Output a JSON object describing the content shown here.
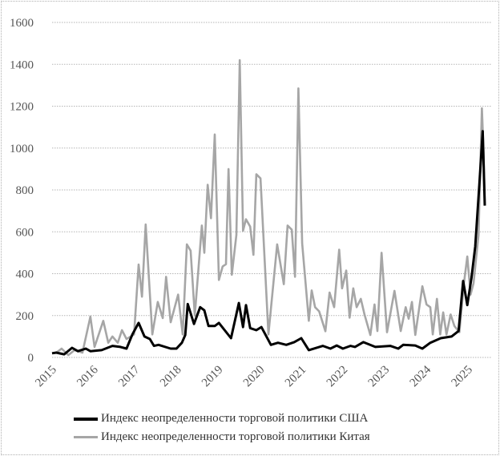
{
  "chart_data": {
    "type": "line",
    "title": "",
    "xlabel": "",
    "ylabel": "",
    "xlim": [
      2015,
      2025.4
    ],
    "ylim": [
      0,
      1600
    ],
    "yticks": [
      0,
      200,
      400,
      600,
      800,
      1000,
      1200,
      1400,
      1600
    ],
    "xtick_labels": [
      "2015",
      "2016",
      "2017",
      "2018",
      "2019",
      "2020",
      "2021",
      "2022",
      "2023",
      "2024",
      "2025"
    ],
    "grid": true,
    "legend_position": "bottom",
    "series": [
      {
        "name": "Индекс неопределенности торговой политики США",
        "color": "#000000",
        "points": [
          [
            2015.0,
            20
          ],
          [
            2015.1,
            23
          ],
          [
            2015.29,
            15
          ],
          [
            2015.48,
            46
          ],
          [
            2015.62,
            30
          ],
          [
            2015.81,
            42
          ],
          [
            2015.92,
            30
          ],
          [
            2016.19,
            35
          ],
          [
            2016.45,
            55
          ],
          [
            2016.64,
            50
          ],
          [
            2016.79,
            42
          ],
          [
            2016.93,
            110
          ],
          [
            2017.08,
            165
          ],
          [
            2017.22,
            100
          ],
          [
            2017.35,
            88
          ],
          [
            2017.45,
            55
          ],
          [
            2017.56,
            60
          ],
          [
            2017.85,
            42
          ],
          [
            2017.99,
            42
          ],
          [
            2018.12,
            70
          ],
          [
            2018.2,
            107
          ],
          [
            2018.26,
            255
          ],
          [
            2018.41,
            160
          ],
          [
            2018.56,
            240
          ],
          [
            2018.66,
            225
          ],
          [
            2018.76,
            150
          ],
          [
            2018.91,
            150
          ],
          [
            2019.01,
            165
          ],
          [
            2019.3,
            92
          ],
          [
            2019.49,
            260
          ],
          [
            2019.59,
            145
          ],
          [
            2019.66,
            250
          ],
          [
            2019.76,
            140
          ],
          [
            2019.91,
            130
          ],
          [
            2020.03,
            145
          ],
          [
            2020.26,
            60
          ],
          [
            2020.43,
            70
          ],
          [
            2020.63,
            60
          ],
          [
            2020.82,
            73
          ],
          [
            2020.99,
            92
          ],
          [
            2021.17,
            35
          ],
          [
            2021.51,
            55
          ],
          [
            2021.69,
            42
          ],
          [
            2021.84,
            57
          ],
          [
            2021.99,
            42
          ],
          [
            2022.17,
            55
          ],
          [
            2022.28,
            50
          ],
          [
            2022.48,
            73
          ],
          [
            2022.77,
            50
          ],
          [
            2023.13,
            55
          ],
          [
            2023.32,
            42
          ],
          [
            2023.44,
            60
          ],
          [
            2023.73,
            57
          ],
          [
            2023.9,
            42
          ],
          [
            2024.09,
            70
          ],
          [
            2024.34,
            92
          ],
          [
            2024.6,
            100
          ],
          [
            2024.77,
            126
          ],
          [
            2024.88,
            365
          ],
          [
            2024.98,
            250
          ],
          [
            2025.08,
            380
          ],
          [
            2025.17,
            530
          ],
          [
            2025.27,
            825
          ],
          [
            2025.35,
            1080
          ],
          [
            2025.4,
            725
          ]
        ]
      },
      {
        "name": "Индекс неопределенности торговой политики Китая",
        "color": "#a6a6a6",
        "points": [
          [
            2015.0,
            20
          ],
          [
            2015.1,
            23
          ],
          [
            2015.23,
            42
          ],
          [
            2015.39,
            11
          ],
          [
            2015.54,
            35
          ],
          [
            2015.73,
            23
          ],
          [
            2015.92,
            195
          ],
          [
            2016.02,
            50
          ],
          [
            2016.23,
            175
          ],
          [
            2016.35,
            70
          ],
          [
            2016.45,
            100
          ],
          [
            2016.58,
            70
          ],
          [
            2016.68,
            130
          ],
          [
            2016.79,
            88
          ],
          [
            2016.97,
            110
          ],
          [
            2017.08,
            444
          ],
          [
            2017.16,
            290
          ],
          [
            2017.25,
            635
          ],
          [
            2017.41,
            110
          ],
          [
            2017.54,
            265
          ],
          [
            2017.66,
            188
          ],
          [
            2017.74,
            385
          ],
          [
            2017.85,
            168
          ],
          [
            2018.03,
            300
          ],
          [
            2018.14,
            110
          ],
          [
            2018.24,
            540
          ],
          [
            2018.33,
            510
          ],
          [
            2018.43,
            200
          ],
          [
            2018.6,
            630
          ],
          [
            2018.66,
            500
          ],
          [
            2018.74,
            825
          ],
          [
            2018.82,
            665
          ],
          [
            2018.91,
            1065
          ],
          [
            2019.01,
            370
          ],
          [
            2019.1,
            435
          ],
          [
            2019.18,
            445
          ],
          [
            2019.24,
            900
          ],
          [
            2019.32,
            395
          ],
          [
            2019.43,
            585
          ],
          [
            2019.51,
            1420
          ],
          [
            2019.59,
            605
          ],
          [
            2019.66,
            660
          ],
          [
            2019.76,
            625
          ],
          [
            2019.84,
            490
          ],
          [
            2019.91,
            875
          ],
          [
            2020.01,
            855
          ],
          [
            2020.2,
            110
          ],
          [
            2020.41,
            540
          ],
          [
            2020.57,
            350
          ],
          [
            2020.66,
            630
          ],
          [
            2020.76,
            610
          ],
          [
            2020.84,
            385
          ],
          [
            2020.92,
            1285
          ],
          [
            2021.01,
            545
          ],
          [
            2021.17,
            175
          ],
          [
            2021.24,
            320
          ],
          [
            2021.32,
            240
          ],
          [
            2021.42,
            220
          ],
          [
            2021.57,
            125
          ],
          [
            2021.67,
            310
          ],
          [
            2021.78,
            240
          ],
          [
            2021.9,
            515
          ],
          [
            2021.97,
            330
          ],
          [
            2022.07,
            415
          ],
          [
            2022.15,
            190
          ],
          [
            2022.24,
            330
          ],
          [
            2022.32,
            240
          ],
          [
            2022.42,
            280
          ],
          [
            2022.51,
            205
          ],
          [
            2022.65,
            107
          ],
          [
            2022.75,
            253
          ],
          [
            2022.82,
            126
          ],
          [
            2022.92,
            500
          ],
          [
            2023.05,
            120
          ],
          [
            2023.23,
            318
          ],
          [
            2023.38,
            126
          ],
          [
            2023.5,
            240
          ],
          [
            2023.57,
            185
          ],
          [
            2023.65,
            265
          ],
          [
            2023.73,
            107
          ],
          [
            2023.9,
            340
          ],
          [
            2024.0,
            253
          ],
          [
            2024.09,
            240
          ],
          [
            2024.15,
            110
          ],
          [
            2024.25,
            280
          ],
          [
            2024.33,
            110
          ],
          [
            2024.4,
            215
          ],
          [
            2024.48,
            110
          ],
          [
            2024.58,
            205
          ],
          [
            2024.67,
            150
          ],
          [
            2024.79,
            120
          ],
          [
            2024.9,
            355
          ],
          [
            2024.98,
            482
          ],
          [
            2025.06,
            300
          ],
          [
            2025.13,
            355
          ],
          [
            2025.25,
            585
          ],
          [
            2025.33,
            1190
          ],
          [
            2025.37,
            990
          ],
          [
            2025.4,
            725
          ]
        ]
      }
    ]
  }
}
